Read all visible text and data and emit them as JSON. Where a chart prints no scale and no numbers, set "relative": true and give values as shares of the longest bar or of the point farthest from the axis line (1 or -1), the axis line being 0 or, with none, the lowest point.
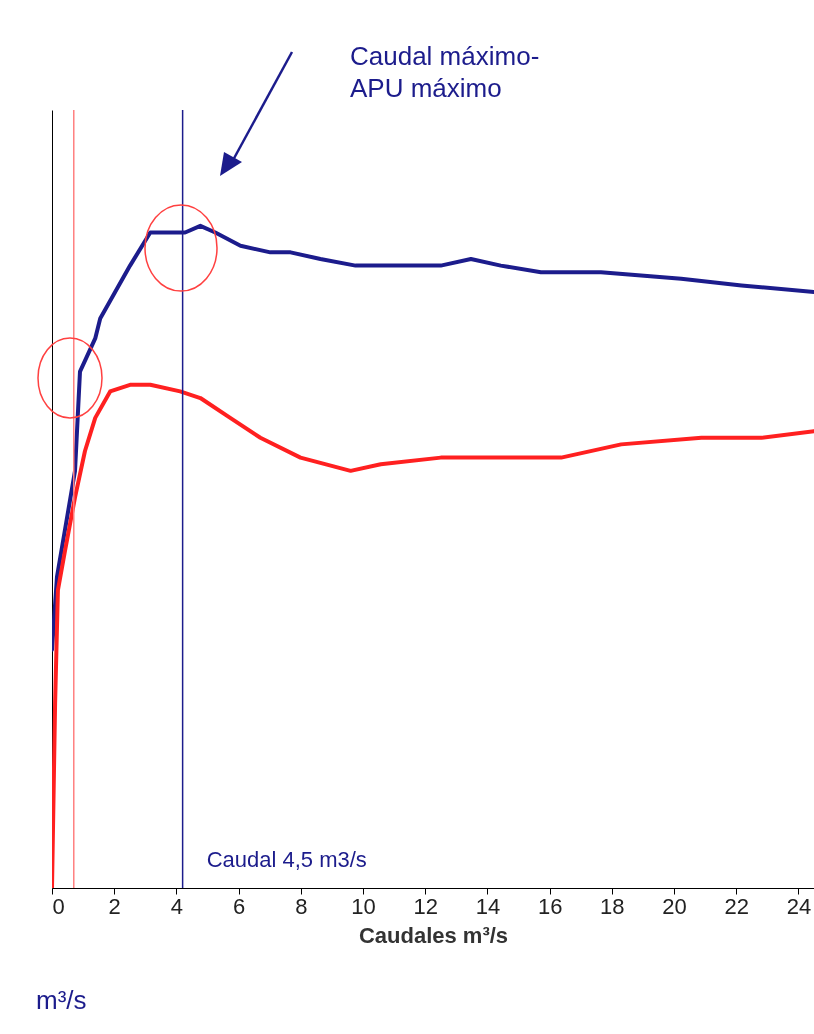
{
  "chart_data": {
    "type": "line",
    "relative": true,
    "xlabel": "Caudales m³/s",
    "xlim": [
      0,
      24.5
    ],
    "xticks": [
      0,
      2,
      4,
      6,
      8,
      10,
      12,
      14,
      16,
      18,
      20,
      22,
      24
    ],
    "line_style": "solid",
    "marker": "none",
    "series": [
      {
        "color": "#1c1c8c",
        "x": [
          0,
          0.16,
          0.74,
          0.9,
          1.39,
          1.55,
          2.03,
          2.51,
          3.16,
          3.64,
          4.28,
          4.77,
          5.25,
          6.06,
          7.02,
          7.67,
          8.63,
          9.76,
          11.21,
          12.5,
          13.47,
          14.43,
          15.72,
          17.65,
          20.23,
          22.17,
          24.5
        ],
        "values": [
          0.36,
          0.47,
          0.63,
          0.78,
          0.83,
          0.86,
          0.9,
          0.94,
          0.99,
          0.99,
          0.99,
          1,
          0.99,
          0.97,
          0.96,
          0.96,
          0.95,
          0.94,
          0.94,
          0.94,
          0.95,
          0.94,
          0.93,
          0.93,
          0.92,
          0.91,
          0.9
        ]
      },
      {
        "color": "#ff2020",
        "x": [
          0,
          0.1,
          0.19,
          0.42,
          0.74,
          1.06,
          1.39,
          1.87,
          2.51,
          3.16,
          4.12,
          4.77,
          5.73,
          6.7,
          7.99,
          9.6,
          10.57,
          12.5,
          14.43,
          16.37,
          18.3,
          20.88,
          22.81,
          24.5
        ],
        "values": [
          0,
          0.28,
          0.45,
          0.51,
          0.59,
          0.66,
          0.71,
          0.75,
          0.76,
          0.76,
          0.75,
          0.74,
          0.71,
          0.68,
          0.65,
          0.63,
          0.64,
          0.65,
          0.65,
          0.65,
          0.67,
          0.68,
          0.68,
          0.69
        ]
      }
    ],
    "ref_lines": [
      {
        "axis": "x",
        "value": 0.7,
        "color": "#ff8080"
      },
      {
        "axis": "x",
        "value": 4.2,
        "color": "#1c1c8c",
        "label": "Caudal 4,5 m3/s"
      }
    ],
    "annotations": [
      "Caudal máximo-\nAPU máximo",
      "m³/s"
    ]
  }
}
